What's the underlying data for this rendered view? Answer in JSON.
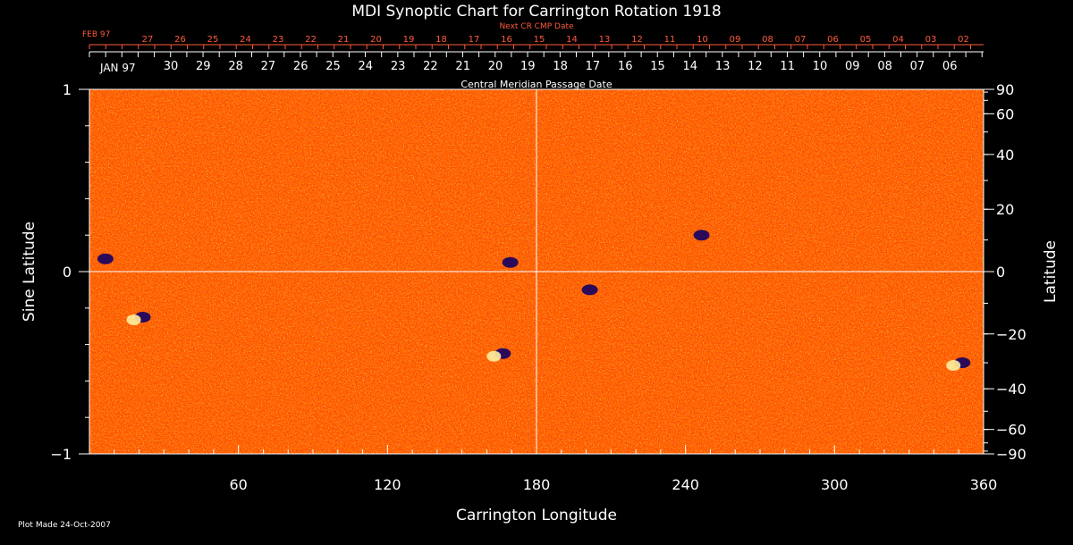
{
  "chart_data": {
    "type": "heatmap",
    "title": "MDI Synoptic Chart for Carrington Rotation 1918",
    "xlabel": "Carrington Longitude",
    "ylabel_left": "Sine Latitude",
    "ylabel_right": "Latitude",
    "x_range": [
      0,
      360
    ],
    "y_range": [
      -1,
      1
    ],
    "x_ticks": [
      60,
      120,
      180,
      240,
      300,
      360
    ],
    "left_y_ticks": [
      {
        "value": 1,
        "label": "1"
      },
      {
        "value": 0,
        "label": "0"
      },
      {
        "value": -1,
        "label": "−1"
      }
    ],
    "right_y_ticks": [
      90,
      60,
      40,
      20,
      0,
      -20,
      -40,
      -60,
      -90
    ],
    "top_scale_label": "Central Meridian Passage Date",
    "next_cr_label": "Next CR CMP Date",
    "next_cr_month_label": "FEB 97",
    "next_cr_dates": [
      "27",
      "26",
      "25",
      "24",
      "23",
      "22",
      "21",
      "20",
      "19",
      "18",
      "17",
      "16",
      "15",
      "14",
      "13",
      "12",
      "11",
      "10",
      "09",
      "08",
      "07",
      "06",
      "05",
      "04",
      "03",
      "02"
    ],
    "cmp_month_label": "JAN 97",
    "cmp_dates": [
      "30",
      "29",
      "28",
      "27",
      "26",
      "25",
      "24",
      "23",
      "22",
      "21",
      "20",
      "19",
      "18",
      "17",
      "16",
      "15",
      "14",
      "13",
      "12",
      "11",
      "10",
      "09",
      "08",
      "07",
      "06"
    ],
    "features": [
      {
        "lon": 5,
        "lat": 0.07,
        "polarity": "negative"
      },
      {
        "lon": 20,
        "lat": -0.25,
        "polarity": "mixed"
      },
      {
        "lon": 168,
        "lat": 0.05,
        "polarity": "negative"
      },
      {
        "lon": 165,
        "lat": -0.45,
        "polarity": "mixed"
      },
      {
        "lon": 200,
        "lat": -0.1,
        "polarity": "negative"
      },
      {
        "lon": 245,
        "lat": 0.2,
        "polarity": "negative"
      },
      {
        "lon": 350,
        "lat": -0.5,
        "polarity": "mixed"
      }
    ],
    "colors": {
      "background": "#ff5000",
      "positive": "#fff0a0",
      "negative": "#140064"
    }
  },
  "footer": {
    "plot_made": "Plot Made 24-Oct-2007"
  }
}
